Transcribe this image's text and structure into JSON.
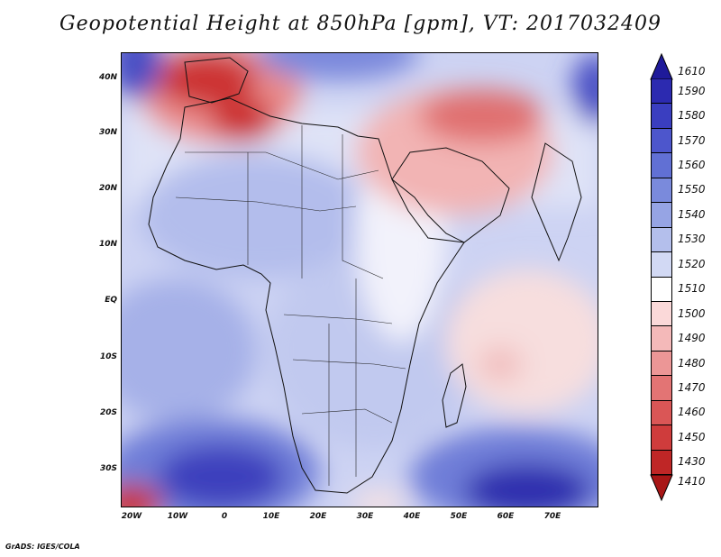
{
  "title": "Geopotential Height at 850hPa [gpm], VT: 2017032409",
  "footer": "GrADS: IGES/COLA",
  "lat_labels": [
    "40N",
    "30N",
    "20N",
    "10N",
    "EQ",
    "10S",
    "20S",
    "30S"
  ],
  "lon_labels": [
    "20W",
    "10W",
    "0",
    "10E",
    "20E",
    "30E",
    "40E",
    "50E",
    "60E",
    "70E"
  ],
  "colorbar": {
    "labels": [
      "1610",
      "1590",
      "1580",
      "1570",
      "1560",
      "1550",
      "1540",
      "1530",
      "1520",
      "1510",
      "1500",
      "1490",
      "1480",
      "1470",
      "1460",
      "1450",
      "1430",
      "1410"
    ],
    "colors": [
      "#1f1a9a",
      "#2c2ab0",
      "#3a3ec0",
      "#4d56cc",
      "#6170d4",
      "#7a8adc",
      "#96a4e4",
      "#b4bfec",
      "#d2d9f4",
      "#ffffff",
      "#fbd9d9",
      "#f4b9b9",
      "#ec9696",
      "#e37474",
      "#da5656",
      "#cf3c3c",
      "#bf2626",
      "#a81616"
    ]
  },
  "colors": {
    "ocean": "#c9cff2",
    "land_blue": "#bfc6f0",
    "deep_blue": "#2a2aa8",
    "mid_blue": "#6f7ed8",
    "red_strong": "#c82a2a",
    "red_mid": "#e57a7a",
    "red_light": "#f6caca",
    "white": "#ffffff"
  }
}
